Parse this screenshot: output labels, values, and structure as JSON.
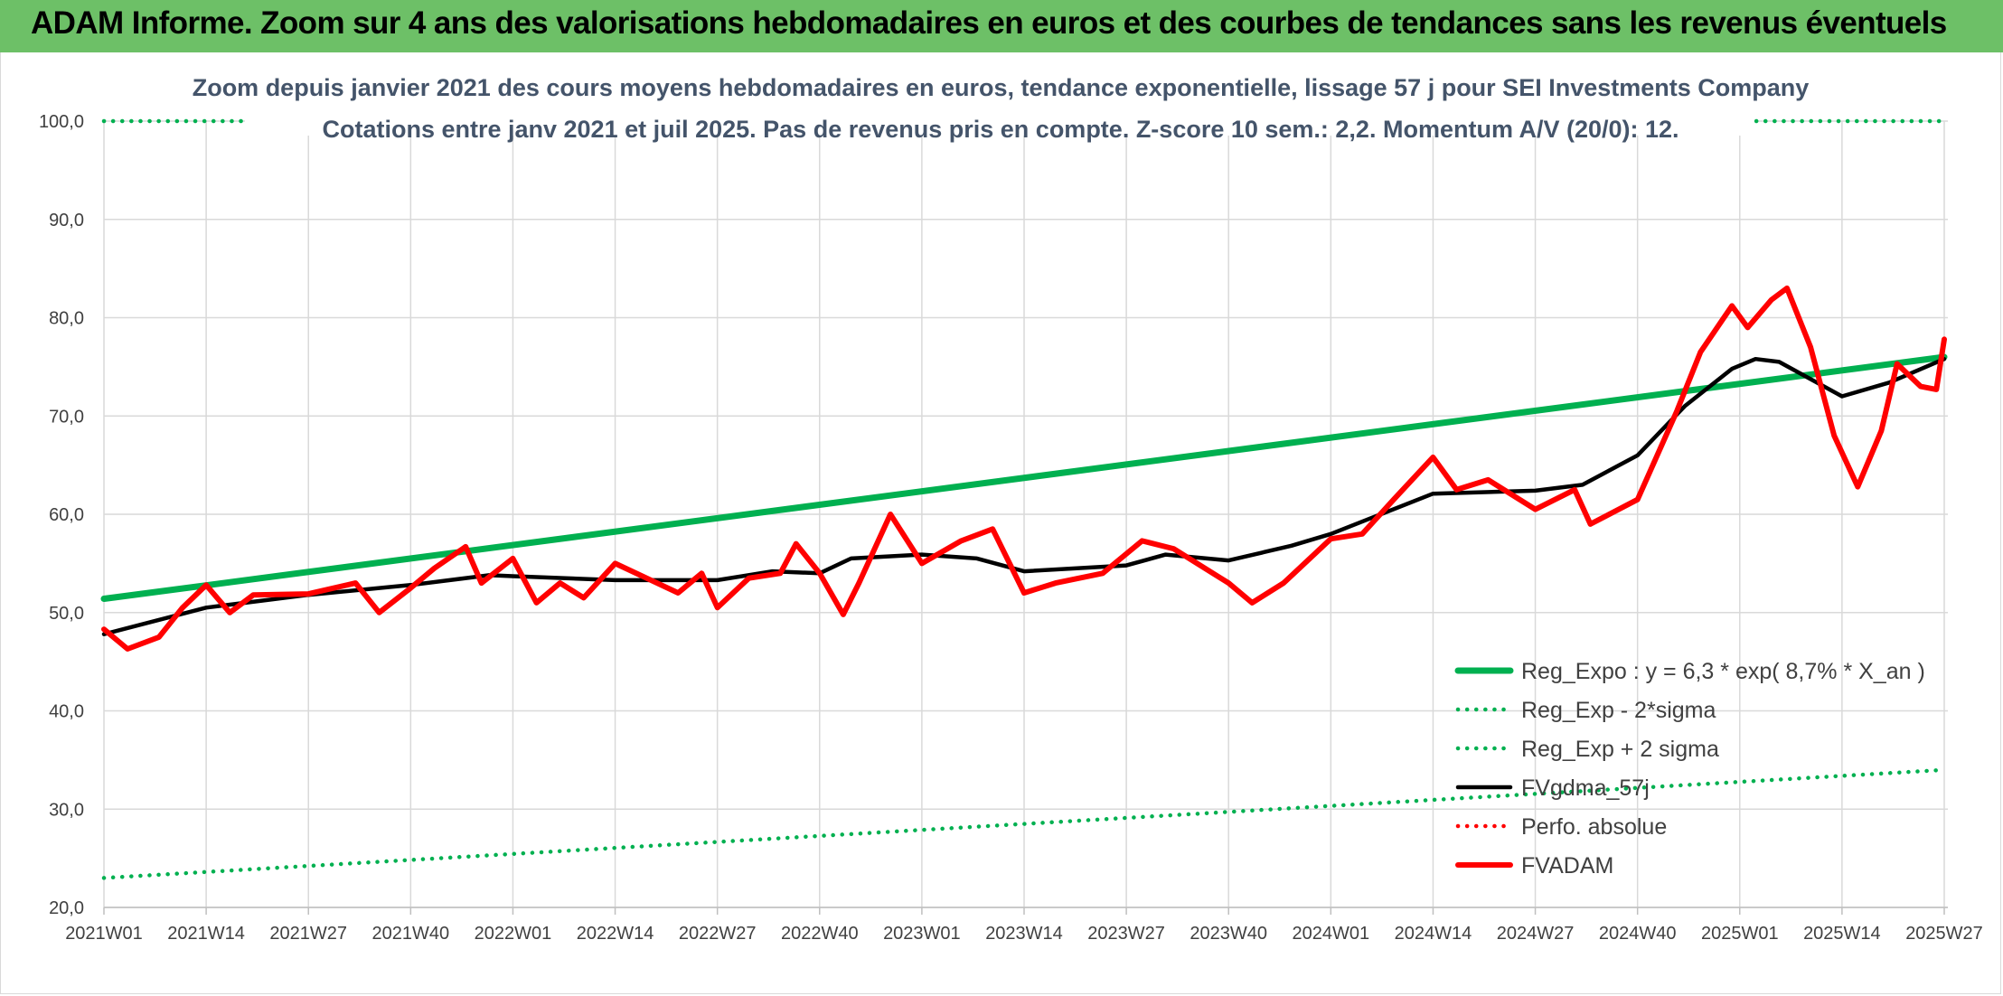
{
  "banner": {
    "title": "ADAM Informe. Zoom sur 4 ans des valorisations hebdomadaires en euros et des courbes de tendances sans les revenus éventuels"
  },
  "colors": {
    "banner_bg": "#6dc067",
    "trend_green": "#00b050",
    "price_red": "#ff0000",
    "sma_black": "#000000",
    "title_text": "#44546a"
  },
  "chart_data": {
    "type": "line",
    "title_line1": "Zoom depuis janvier 2021 des cours moyens hebdomadaires en euros, tendance exponentielle, lissage 57 j pour SEI Investments Company",
    "title_line2": "Cotations entre janv 2021 et juil 2025. Pas de revenus pris en compte. Z-score 10 sem.: 2,2. Momentum A/V (20/0): 12.",
    "xlabel": "",
    "ylabel": "",
    "ylim": [
      20,
      100
    ],
    "yticks": [
      "20,0",
      "30,0",
      "40,0",
      "50,0",
      "60,0",
      "70,0",
      "80,0",
      "90,0",
      "100,0"
    ],
    "x_tick_labels": [
      "2021W01",
      "2021W14",
      "2021W27",
      "2021W40",
      "2022W01",
      "2022W14",
      "2022W27",
      "2022W40",
      "2023W01",
      "2023W14",
      "2023W27",
      "2023W40",
      "2024W01",
      "2024W14",
      "2024W27",
      "2024W40",
      "2025W01",
      "2025W14",
      "2025W27"
    ],
    "grid": true,
    "legend_position": "bottom-right",
    "series": [
      {
        "name": "Reg_Expo : y = 6,3 * exp( 8,7% *  X_an )",
        "style": "solid-thick",
        "color": "#00b050",
        "points": [
          [
            "2021W01",
            51.4
          ],
          [
            "2025W27",
            76.0
          ]
        ]
      },
      {
        "name": "Reg_Exp - 2*sigma",
        "style": "dotted",
        "color": "#00b050",
        "points": [
          [
            "2021W01",
            23.0
          ],
          [
            "2025W27",
            34.0
          ]
        ]
      },
      {
        "name": "Reg_Exp + 2 sigma",
        "style": "dotted",
        "color": "#00b050",
        "points": [
          [
            "2021W01",
            100.0
          ],
          [
            "2025W27",
            100.0
          ]
        ]
      },
      {
        "name": "FVgdma_57j",
        "style": "solid",
        "color": "#000000",
        "points": [
          [
            "2021W01",
            47.8
          ],
          [
            "2021W14",
            50.5
          ],
          [
            "2021W27",
            51.8
          ],
          [
            "2021W40",
            52.8
          ],
          [
            "2021W50",
            53.8
          ],
          [
            "2022W01",
            53.7
          ],
          [
            "2022W14",
            53.3
          ],
          [
            "2022W27",
            53.3
          ],
          [
            "2022W34",
            54.2
          ],
          [
            "2022W40",
            54.0
          ],
          [
            "2022W44",
            55.5
          ],
          [
            "2023W01",
            55.9
          ],
          [
            "2023W08",
            55.5
          ],
          [
            "2023W14",
            54.2
          ],
          [
            "2023W27",
            54.8
          ],
          [
            "2023W32",
            55.9
          ],
          [
            "2023W40",
            55.3
          ],
          [
            "2023W48",
            56.8
          ],
          [
            "2024W01",
            58.0
          ],
          [
            "2024W14",
            62.1
          ],
          [
            "2024W27",
            62.4
          ],
          [
            "2024W33",
            63.0
          ],
          [
            "2024W40",
            66.0
          ],
          [
            "2024W46",
            71.0
          ],
          [
            "2024W52",
            74.8
          ],
          [
            "2025W03",
            75.8
          ],
          [
            "2025W06",
            75.5
          ],
          [
            "2025W14",
            72.0
          ],
          [
            "2025W20",
            73.4
          ],
          [
            "2025W27",
            75.8
          ]
        ]
      },
      {
        "name": "Perfo. absolue",
        "style": "dotted",
        "color": "#ff0000",
        "points": []
      },
      {
        "name": "FVADAM",
        "style": "solid-thick",
        "color": "#ff0000",
        "points": [
          [
            "2021W01",
            48.3
          ],
          [
            "2021W04",
            46.3
          ],
          [
            "2021W08",
            47.5
          ],
          [
            "2021W11",
            50.5
          ],
          [
            "2021W14",
            52.8
          ],
          [
            "2021W17",
            50.0
          ],
          [
            "2021W20",
            51.8
          ],
          [
            "2021W27",
            51.9
          ],
          [
            "2021W33",
            53.0
          ],
          [
            "2021W36",
            50.0
          ],
          [
            "2021W40",
            52.5
          ],
          [
            "2021W43",
            54.5
          ],
          [
            "2021W47",
            56.7
          ],
          [
            "2021W49",
            53.0
          ],
          [
            "2022W01",
            55.5
          ],
          [
            "2022W04",
            51.0
          ],
          [
            "2022W07",
            53.0
          ],
          [
            "2022W10",
            51.5
          ],
          [
            "2022W14",
            55.0
          ],
          [
            "2022W18",
            53.5
          ],
          [
            "2022W22",
            52.0
          ],
          [
            "2022W25",
            54.0
          ],
          [
            "2022W27",
            50.5
          ],
          [
            "2022W31",
            53.5
          ],
          [
            "2022W35",
            54.0
          ],
          [
            "2022W37",
            57.0
          ],
          [
            "2022W40",
            54.0
          ],
          [
            "2022W43",
            49.8
          ],
          [
            "2022W45",
            53.0
          ],
          [
            "2022W49",
            60.0
          ],
          [
            "2023W01",
            55.0
          ],
          [
            "2023W06",
            57.3
          ],
          [
            "2023W10",
            58.5
          ],
          [
            "2023W14",
            52.0
          ],
          [
            "2023W18",
            53.0
          ],
          [
            "2023W24",
            54.0
          ],
          [
            "2023W29",
            57.3
          ],
          [
            "2023W33",
            56.5
          ],
          [
            "2023W40",
            53.0
          ],
          [
            "2023W43",
            51.0
          ],
          [
            "2023W47",
            53.0
          ],
          [
            "2024W01",
            57.5
          ],
          [
            "2024W05",
            58.0
          ],
          [
            "2024W09",
            61.5
          ],
          [
            "2024W14",
            65.8
          ],
          [
            "2024W17",
            62.5
          ],
          [
            "2024W21",
            63.5
          ],
          [
            "2024W27",
            60.5
          ],
          [
            "2024W32",
            62.5
          ],
          [
            "2024W34",
            59.0
          ],
          [
            "2024W40",
            61.5
          ],
          [
            "2024W45",
            70.5
          ],
          [
            "2024W48",
            76.5
          ],
          [
            "2024W52",
            81.2
          ],
          [
            "2025W02",
            79.0
          ],
          [
            "2025W05",
            81.8
          ],
          [
            "2025W07",
            83.0
          ],
          [
            "2025W10",
            77.0
          ],
          [
            "2025W13",
            68.0
          ],
          [
            "2025W16",
            62.8
          ],
          [
            "2025W19",
            68.5
          ],
          [
            "2025W21",
            75.3
          ],
          [
            "2025W24",
            73.0
          ],
          [
            "2025W26",
            72.7
          ],
          [
            "2025W27",
            77.8
          ]
        ]
      }
    ]
  }
}
